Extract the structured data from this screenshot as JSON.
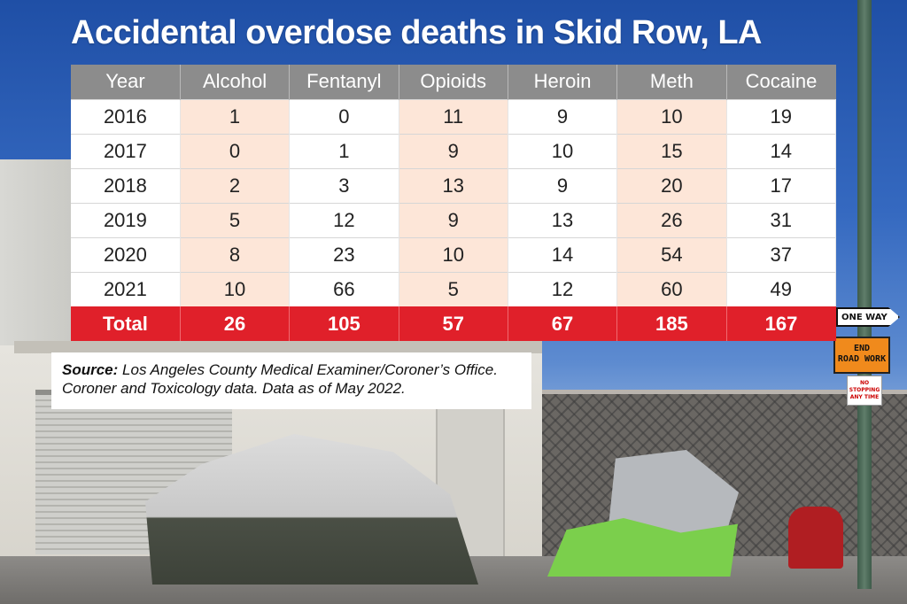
{
  "title": "Accidental overdose deaths in Skid Row, LA",
  "chart_data": {
    "type": "table",
    "title": "Accidental overdose deaths in Skid Row, LA",
    "columns": [
      "Year",
      "Alcohol",
      "Fentanyl",
      "Opioids",
      "Heroin",
      "Meth",
      "Cocaine"
    ],
    "rows": [
      [
        "2016",
        "1",
        "0",
        "11",
        "9",
        "10",
        "19"
      ],
      [
        "2017",
        "0",
        "1",
        "9",
        "10",
        "15",
        "14"
      ],
      [
        "2018",
        "2",
        "3",
        "13",
        "9",
        "20",
        "17"
      ],
      [
        "2019",
        "5",
        "12",
        "9",
        "13",
        "26",
        "31"
      ],
      [
        "2020",
        "8",
        "23",
        "10",
        "14",
        "54",
        "37"
      ],
      [
        "2021",
        "10",
        "66",
        "5",
        "12",
        "60",
        "49"
      ]
    ],
    "totals": [
      "Total",
      "26",
      "105",
      "57",
      "67",
      "185",
      "167"
    ]
  },
  "source": {
    "label": "Source:",
    "text": "Los Angeles County Medical Examiner/Coroner’s Office. Coroner and Toxicology data. Data as of May 2022."
  },
  "signs": {
    "one_way": "ONE WAY",
    "end_line1": "END",
    "end_line2": "ROAD WORK",
    "no_stopping_line1": "NO STOPPING",
    "no_stopping_line2": "ANY TIME"
  },
  "colors": {
    "header_gray": "#8c8c8c",
    "shade_peach": "#fde6d8",
    "total_red": "#e0202a",
    "sky_blue": "#2d5fb0"
  }
}
